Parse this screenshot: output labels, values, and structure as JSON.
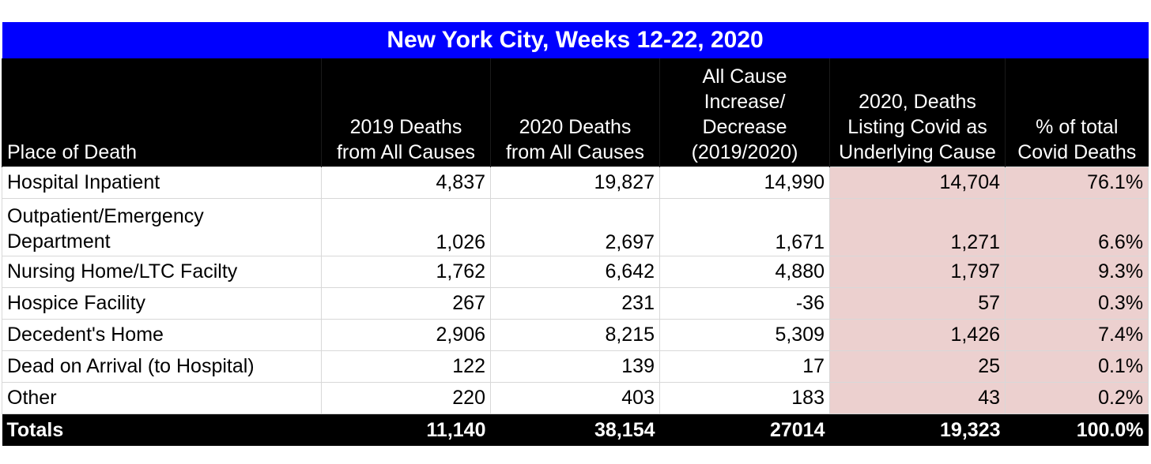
{
  "title": "New York City, Weeks 12-22, 2020",
  "headers": [
    "Place of Death",
    "2019 Deaths from All Causes",
    "2020 Deaths from All Causes",
    "All Cause Increase/ Decrease (2019/2020)",
    "2020, Deaths Listing Covid as Underlying Cause",
    "% of total Covid Deaths"
  ],
  "header_lines": [
    [
      "Place of Death"
    ],
    [
      "2019 Deaths",
      "from All Causes"
    ],
    [
      "2020 Deaths",
      "from All Causes"
    ],
    [
      "All Cause",
      "Increase/",
      "Decrease",
      "(2019/2020)"
    ],
    [
      "2020, Deaths",
      "Listing Covid as",
      "Underlying Cause"
    ],
    [
      "% of total",
      "Covid Deaths"
    ]
  ],
  "rows": [
    {
      "place": "Hospital Inpatient",
      "d2019": "4,837",
      "d2020": "19,827",
      "change": "14,990",
      "covid": "14,704",
      "pct": "76.1%"
    },
    {
      "place_lines": [
        "Outpatient/Emergency",
        "Department"
      ],
      "d2019": "1,026",
      "d2020": "2,697",
      "change": "1,671",
      "covid": "1,271",
      "pct": "6.6%"
    },
    {
      "place": "Nursing Home/LTC Facilty",
      "d2019": "1,762",
      "d2020": "6,642",
      "change": "4,880",
      "covid": "1,797",
      "pct": "9.3%"
    },
    {
      "place": "Hospice Facility",
      "d2019": "267",
      "d2020": "231",
      "change": "-36",
      "covid": "57",
      "pct": "0.3%"
    },
    {
      "place": "Decedent's Home",
      "d2019": "2,906",
      "d2020": "8,215",
      "change": "5,309",
      "covid": "1,426",
      "pct": "7.4%"
    },
    {
      "place": "Dead on Arrival (to Hospital)",
      "d2019": "122",
      "d2020": "139",
      "change": "17",
      "covid": "25",
      "pct": "0.1%"
    },
    {
      "place": "Other",
      "d2019": "220",
      "d2020": "403",
      "change": "183",
      "covid": "43",
      "pct": "0.2%"
    }
  ],
  "totals": {
    "label": "Totals",
    "d2019": "11,140",
    "d2020": "38,154",
    "change": "27014",
    "covid": "19,323",
    "pct": "100.0%"
  },
  "colors": {
    "title_bg": "#0000ff",
    "header_bg": "#000000",
    "highlight": "#ecd0cf"
  }
}
